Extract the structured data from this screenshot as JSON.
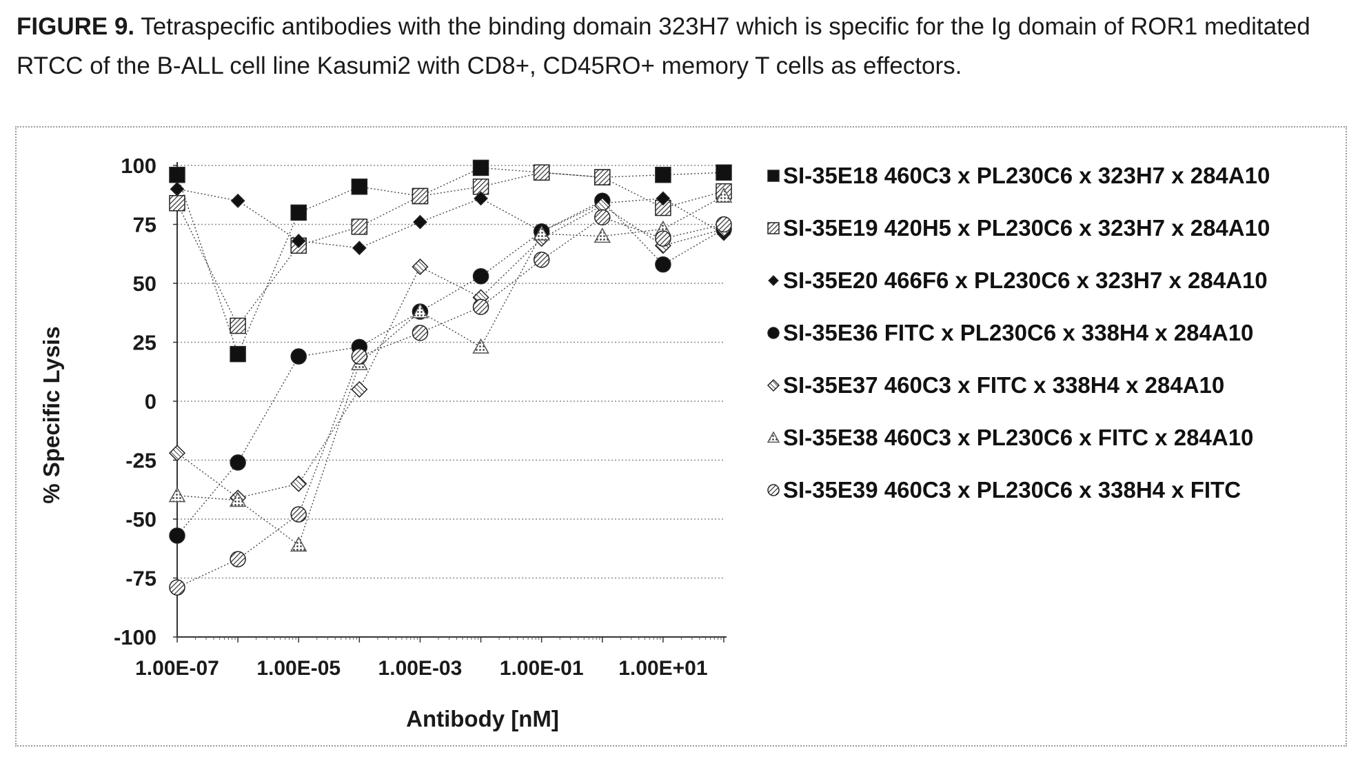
{
  "caption": {
    "label": "FIGURE 9.",
    "text": " Tetraspecific antibodies with the binding domain 323H7 which is specific for the Ig domain of ROR1 meditated RTCC of the B-ALL cell line Kasumi2 with CD8+, CD45RO+ memory T cells as effectors."
  },
  "chart_data": {
    "type": "scatter",
    "title": "",
    "xlabel": "Antibody [nM]",
    "ylabel": "% Specific Lysis",
    "xscale": "log",
    "xlim": [
      1e-07,
      100
    ],
    "ylim": [
      -100,
      100
    ],
    "xticks": [
      1e-07,
      1e-05,
      0.001,
      0.1,
      10
    ],
    "xtick_labels": [
      "1.00E-07",
      "1.00E-05",
      "1.00E-03",
      "1.00E-01",
      "1.00E+01"
    ],
    "yticks": [
      100,
      75,
      50,
      25,
      0,
      -25,
      -50,
      -75,
      -100
    ],
    "ytick_labels": [
      "100",
      "75",
      "50",
      "25",
      "0",
      "-25",
      "-50",
      "-75",
      "-100"
    ],
    "grid": "horizontal dotted",
    "legend_position": "right",
    "x": [
      1e-07,
      1e-06,
      1e-05,
      0.0001,
      0.001,
      0.01,
      0.1,
      1,
      10,
      100
    ],
    "series": [
      {
        "name": "SI-35E18 460C3 x PL230C6 x 323H7 x 284A10",
        "marker": "square",
        "fill": "#111111",
        "values": [
          96,
          20,
          80,
          91,
          87,
          99,
          97,
          95,
          96,
          97
        ]
      },
      {
        "name": "SI-35E19 420H5 x PL230C6 x 323H7 x 284A10",
        "marker": "square-hatched",
        "fill": "#777777",
        "values": [
          84,
          32,
          66,
          74,
          87,
          91,
          97,
          95,
          82,
          89
        ]
      },
      {
        "name": "SI-35E20 466F6 x PL230C6 x 323H7 x 284A10",
        "marker": "diamond",
        "fill": "#111111",
        "values": [
          90,
          85,
          68,
          65,
          76,
          86,
          72,
          84,
          86,
          71
        ]
      },
      {
        "name": "SI-35E36 FITC x PL230C6 x 338H4 x 284A10",
        "marker": "circle",
        "fill": "#111111",
        "values": [
          -57,
          -26,
          19,
          23,
          38,
          53,
          72,
          85,
          58,
          73
        ]
      },
      {
        "name": "SI-35E37 460C3 x FITC x 338H4 x 284A10",
        "marker": "diamond-open",
        "fill": "#888888",
        "values": [
          -22,
          -41,
          -35,
          5,
          57,
          44,
          69,
          83,
          66,
          73
        ]
      },
      {
        "name": "SI-35E38 460C3 x PL230C6 x FITC x 284A10",
        "marker": "triangle-open",
        "fill": "#888888",
        "values": [
          -40,
          -42,
          -61,
          16,
          38,
          23,
          71,
          70,
          73,
          87
        ]
      },
      {
        "name": "SI-35E39 460C3 x PL230C6 x 338H4 x FITC",
        "marker": "circle-hatched",
        "fill": "#888888",
        "values": [
          -79,
          -67,
          -48,
          19,
          29,
          40,
          60,
          78,
          69,
          75
        ]
      }
    ]
  }
}
